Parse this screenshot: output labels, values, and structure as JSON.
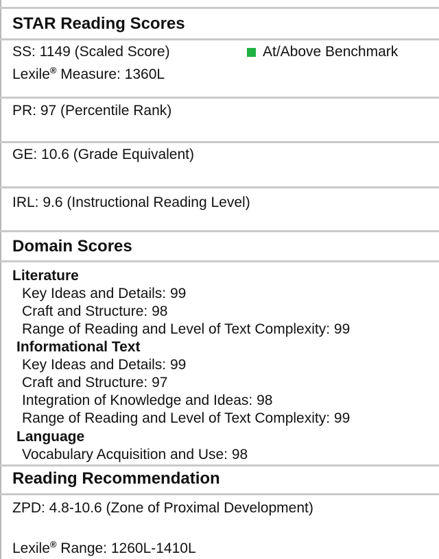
{
  "star": {
    "title": "STAR Reading Scores",
    "ss": "SS: 1149 (Scaled Score)",
    "lexile_label": "Lexile",
    "lexile_mark": "®",
    "lexile_value": " Measure: 1360L",
    "benchmark_label": "At/Above Benchmark",
    "benchmark_color": "#1fb142",
    "benchmark_icon": "green-square",
    "pr": "PR: 97 (Percentile Rank)",
    "ge": "GE: 10.6 (Grade Equivalent)",
    "irl": "IRL: 9.6 (Instructional Reading Level)"
  },
  "domain": {
    "title": "Domain Scores",
    "literature": {
      "label": "Literature",
      "items": [
        "Key Ideas and Details: 99",
        "Craft and Structure: 98",
        "Range of Reading and Level of Text Complexity: 99"
      ]
    },
    "informational": {
      "label": "Informational Text",
      "items": [
        "Key Ideas and Details: 99",
        "Craft and Structure: 97",
        "Integration of Knowledge and Ideas: 98",
        "Range of Reading and Level of Text Complexity: 99"
      ]
    },
    "language": {
      "label": "Language",
      "items": [
        "Vocabulary Acquisition and Use: 98"
      ]
    }
  },
  "recommendation": {
    "title": "Reading Recommendation",
    "zpd": "ZPD: 4.8-10.6 (Zone of Proximal Development)",
    "lexile_label": "Lexile",
    "lexile_mark": "®",
    "lexile_range": " Range: 1260L-1410L"
  }
}
